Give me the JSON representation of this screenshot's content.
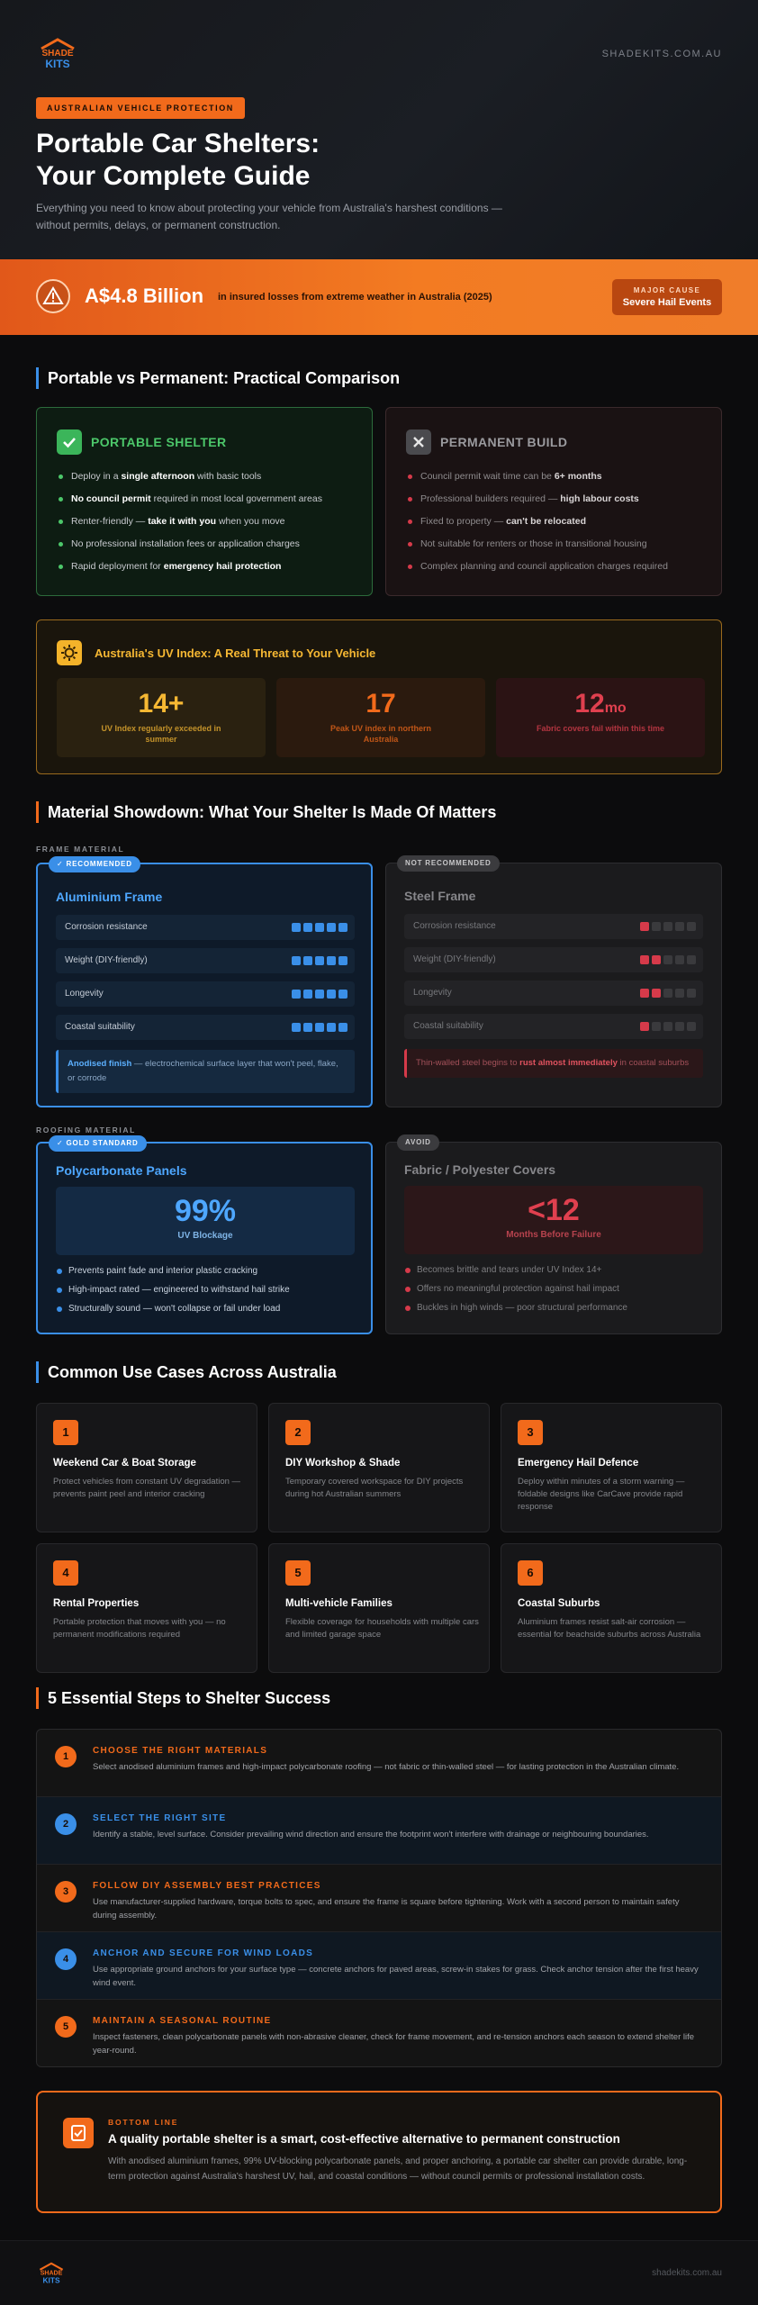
{
  "header": {
    "logo_text_top": "SHADE",
    "logo_text_bottom": "KITS",
    "domain": "SHADEKITS.COM.AU",
    "pill": "AUSTRALIAN VEHICLE PROTECTION",
    "title_line1": "Portable Car Shelters:",
    "title_line2": "Your Complete Guide",
    "subtitle": "Everything you need to know about protecting your vehicle from Australia's harshest conditions — without permits, delays, or permanent construction."
  },
  "banner": {
    "icon": "warning-triangle-icon",
    "amount": "A$4.8 Billion",
    "description": "in insured losses from extreme weather in Australia (2025)",
    "cause_label": "MAJOR CAUSE",
    "cause_value": "Severe Hail Events"
  },
  "comparison": {
    "title": "Portable vs Permanent: Practical Comparison",
    "portable": {
      "heading": "PORTABLE SHELTER",
      "items": [
        {
          "pre": "Deploy in a ",
          "bold": "single afternoon",
          "post": " with basic tools"
        },
        {
          "pre": "",
          "bold": "No council permit",
          "post": " required in most local government areas"
        },
        {
          "pre": "Renter-friendly — ",
          "bold": "take it with you",
          "post": " when you move"
        },
        {
          "pre": "No professional installation fees or application charges",
          "bold": "",
          "post": ""
        },
        {
          "pre": "Rapid deployment for ",
          "bold": "emergency hail protection",
          "post": ""
        }
      ]
    },
    "permanent": {
      "heading": "PERMANENT BUILD",
      "items": [
        {
          "pre": "Council permit wait time can be ",
          "bold": "6+ months",
          "post": ""
        },
        {
          "pre": "Professional builders required — ",
          "bold": "high labour costs",
          "post": ""
        },
        {
          "pre": "Fixed to property — ",
          "bold": "can't be relocated",
          "post": ""
        },
        {
          "pre": "Not suitable for renters or those in transitional housing",
          "bold": "",
          "post": ""
        },
        {
          "pre": "Complex planning and council application charges required",
          "bold": "",
          "post": ""
        }
      ]
    }
  },
  "uv": {
    "title": "Australia's UV Index: A Real Threat to Your Vehicle",
    "stats": [
      {
        "value": "14+",
        "unit": "",
        "label": "UV Index regularly exceeded in summer",
        "color": "#f6b833",
        "bg": "#2a2110"
      },
      {
        "value": "17",
        "unit": "",
        "label": "Peak UV index in northern Australia",
        "color": "#f26a1b",
        "bg": "#2b1a0e"
      },
      {
        "value": "12",
        "unit": "mo",
        "label": "Fabric covers fail within this time",
        "color": "#e0404f",
        "bg": "#2b1314"
      }
    ]
  },
  "materials": {
    "title": "Material Showdown: What Your Shelter Is Made Of Matters",
    "frame_label": "FRAME MATERIAL",
    "roof_label": "ROOFING MATERIAL",
    "aluminium": {
      "tag": "✓ RECOMMENDED",
      "heading": "Aluminium Frame",
      "rows": [
        {
          "label": "Corrosion resistance",
          "score": 5
        },
        {
          "label": "Weight (DIY-friendly)",
          "score": 5
        },
        {
          "label": "Longevity",
          "score": 5
        },
        {
          "label": "Coastal suitability",
          "score": 5
        }
      ],
      "note_bold": "Anodised finish",
      "note_rest": " — electrochemical surface layer that won't peel, flake, or corrode"
    },
    "steel": {
      "tag": "NOT RECOMMENDED",
      "heading": "Steel Frame",
      "rows": [
        {
          "label": "Corrosion resistance",
          "score": 1
        },
        {
          "label": "Weight (DIY-friendly)",
          "score": 2
        },
        {
          "label": "Longevity",
          "score": 2
        },
        {
          "label": "Coastal suitability",
          "score": 1
        }
      ],
      "note_pre": "Thin-walled steel begins to ",
      "note_bold": "rust almost immediately",
      "note_post": " in coastal suburbs"
    },
    "polycarbonate": {
      "tag": "✓ GOLD STANDARD",
      "heading": "Polycarbonate Panels",
      "stat": "99%",
      "stat_label": "UV Blockage",
      "items": [
        "Prevents paint fade and interior plastic cracking",
        "High-impact rated — engineered to withstand hail strike",
        "Structurally sound — won't collapse or fail under load"
      ]
    },
    "fabric": {
      "tag": "AVOID",
      "heading": "Fabric / Polyester Covers",
      "stat": "<12",
      "stat_label": "Months Before Failure",
      "items": [
        "Becomes brittle and tears under UV Index 14+",
        "Offers no meaningful protection against hail impact",
        "Buckles in high winds — poor structural performance"
      ]
    }
  },
  "use_cases": {
    "title": "Common Use Cases Across Australia",
    "items": [
      {
        "num": "1",
        "title": "Weekend Car & Boat Storage",
        "desc": "Protect vehicles from constant UV degradation — prevents paint peel and interior cracking"
      },
      {
        "num": "2",
        "title": "DIY Workshop & Shade",
        "desc": "Temporary covered workspace for DIY projects during hot Australian summers"
      },
      {
        "num": "3",
        "title": "Emergency Hail Defence",
        "desc": "Deploy within minutes of a storm warning — foldable designs like CarCave provide rapid response"
      },
      {
        "num": "4",
        "title": "Rental Properties",
        "desc": "Portable protection that moves with you — no permanent modifications required"
      },
      {
        "num": "5",
        "title": "Multi-vehicle Families",
        "desc": "Flexible coverage for households with multiple cars and limited garage space"
      },
      {
        "num": "6",
        "title": "Coastal Suburbs",
        "desc": "Aluminium frames resist salt-air corrosion — essential for beachside suburbs across Australia"
      }
    ]
  },
  "steps": {
    "title": "5 Essential Steps to Shelter Success",
    "items": [
      {
        "num": "1",
        "title": "CHOOSE THE RIGHT MATERIALS",
        "desc": "Select anodised aluminium frames and high-impact polycarbonate roofing — not fabric or thin-walled steel — for lasting protection in the Australian climate.",
        "color": "#f26a1b"
      },
      {
        "num": "2",
        "title": "SELECT THE RIGHT SITE",
        "desc": "Identify a stable, level surface. Consider prevailing wind direction and ensure the footprint won't interfere with drainage or neighbouring boundaries.",
        "color": "#3a8fe8"
      },
      {
        "num": "3",
        "title": "FOLLOW DIY ASSEMBLY BEST PRACTICES",
        "desc": "Use manufacturer-supplied hardware, torque bolts to spec, and ensure the frame is square before tightening. Work with a second person to maintain safety during assembly.",
        "color": "#f26a1b"
      },
      {
        "num": "4",
        "title": "ANCHOR AND SECURE FOR WIND LOADS",
        "desc": "Use appropriate ground anchors for your surface type — concrete anchors for paved areas, screw-in stakes for grass. Check anchor tension after the first heavy wind event.",
        "color": "#3a8fe8"
      },
      {
        "num": "5",
        "title": "MAINTAIN A SEASONAL ROUTINE",
        "desc": "Inspect fasteners, clean polycarbonate panels with non-abrasive cleaner, check for frame movement, and re-tension anchors each season to extend shelter life year-round.",
        "color": "#f26a1b"
      }
    ]
  },
  "bottom_line": {
    "label": "BOTTOM LINE",
    "title": "A quality portable shelter is a smart, cost-effective alternative to permanent construction",
    "desc": "With anodised aluminium frames, 99% UV-blocking polycarbonate panels, and proper anchoring, a portable car shelter can provide durable, long-term protection against Australia's harshest UV, hail, and coastal conditions — without council permits or professional installation costs."
  },
  "footer": {
    "domain": "shadekits.com.au"
  },
  "colors": {
    "accent_orange": "#f26a1b",
    "accent_blue": "#3a8fe8",
    "green": "#4cc76a",
    "red": "#d63a4a",
    "yellow": "#f6b833"
  }
}
